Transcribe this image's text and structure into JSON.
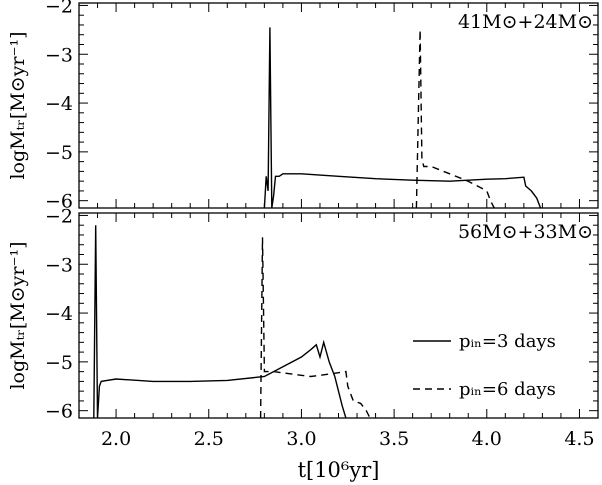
{
  "chart_data": [
    {
      "type": "line",
      "panel": "top",
      "annotation": "41M⊙+24M⊙",
      "ylabel": "logMₜᵣ[M⊙yr⁻¹]",
      "xlabel": "",
      "xlim": [
        1.8,
        4.6
      ],
      "ylim": [
        -6.15,
        -1.95
      ],
      "yticks": [
        -6,
        -5,
        -4,
        -3,
        -2
      ],
      "ytick_labels": [
        "−6",
        "−5",
        "−4",
        "−3",
        "−2"
      ],
      "xticks": [
        2.0,
        2.5,
        3.0,
        3.5,
        4.0,
        4.5
      ],
      "series": [
        {
          "style": "solid",
          "x": [
            2.8,
            2.81,
            2.82,
            2.83,
            2.84,
            2.85,
            2.86,
            2.88,
            2.9,
            3.0,
            3.2,
            3.4,
            3.6,
            3.8,
            4.0,
            4.1,
            4.2,
            4.21,
            4.24,
            4.27,
            4.29
          ],
          "y": [
            -6.15,
            -5.5,
            -5.8,
            -2.45,
            -6.15,
            -5.9,
            -5.5,
            -5.5,
            -5.45,
            -5.45,
            -5.5,
            -5.55,
            -5.58,
            -5.6,
            -5.56,
            -5.55,
            -5.52,
            -5.7,
            -5.8,
            -5.95,
            -6.15
          ]
        },
        {
          "style": "dashed",
          "x": [
            3.62,
            3.64,
            3.65,
            3.66,
            3.7,
            3.8,
            3.9,
            4.0,
            4.02,
            4.04
          ],
          "y": [
            -6.15,
            -2.5,
            -5.15,
            -5.3,
            -5.3,
            -5.45,
            -5.6,
            -5.8,
            -6.0,
            -6.15
          ]
        }
      ]
    },
    {
      "type": "line",
      "panel": "bottom",
      "annotation": "56M⊙+33M⊙",
      "ylabel": "logMₜᵣ[M⊙yr⁻¹]",
      "xlabel": "t[10⁶yr]",
      "xlim": [
        1.8,
        4.6
      ],
      "ylim": [
        -6.15,
        -1.95
      ],
      "yticks": [
        -6,
        -5,
        -4,
        -3,
        -2
      ],
      "ytick_labels": [
        "−6",
        "−5",
        "−4",
        "−3",
        "−2"
      ],
      "xticks": [
        2.0,
        2.5,
        3.0,
        3.5,
        4.0,
        4.5
      ],
      "xtick_labels": [
        "2.0",
        "2.5",
        "3.0",
        "3.5",
        "4.0",
        "4.5"
      ],
      "series": [
        {
          "style": "solid",
          "name": "pᵢₙ=3 days",
          "x": [
            1.88,
            1.89,
            1.9,
            1.91,
            1.92,
            2.0,
            2.2,
            2.4,
            2.6,
            2.8,
            2.9,
            3.0,
            3.05,
            3.08,
            3.1,
            3.12,
            3.15,
            3.18,
            3.2,
            3.22,
            3.24
          ],
          "y": [
            -6.15,
            -2.2,
            -6.15,
            -5.5,
            -5.4,
            -5.35,
            -5.4,
            -5.4,
            -5.38,
            -5.3,
            -5.1,
            -4.9,
            -4.75,
            -4.65,
            -4.9,
            -4.6,
            -5.0,
            -5.3,
            -5.6,
            -5.9,
            -6.15
          ]
        },
        {
          "style": "dashed",
          "name": "pᵢₙ=6 days",
          "x": [
            2.78,
            2.79,
            2.8,
            2.81,
            2.85,
            2.95,
            3.05,
            3.15,
            3.24,
            3.25,
            3.28,
            3.32,
            3.35,
            3.37
          ],
          "y": [
            -6.15,
            -2.45,
            -5.2,
            -5.2,
            -5.2,
            -5.25,
            -5.3,
            -5.25,
            -5.2,
            -5.5,
            -5.8,
            -5.85,
            -6.0,
            -6.15
          ]
        }
      ]
    }
  ]
}
